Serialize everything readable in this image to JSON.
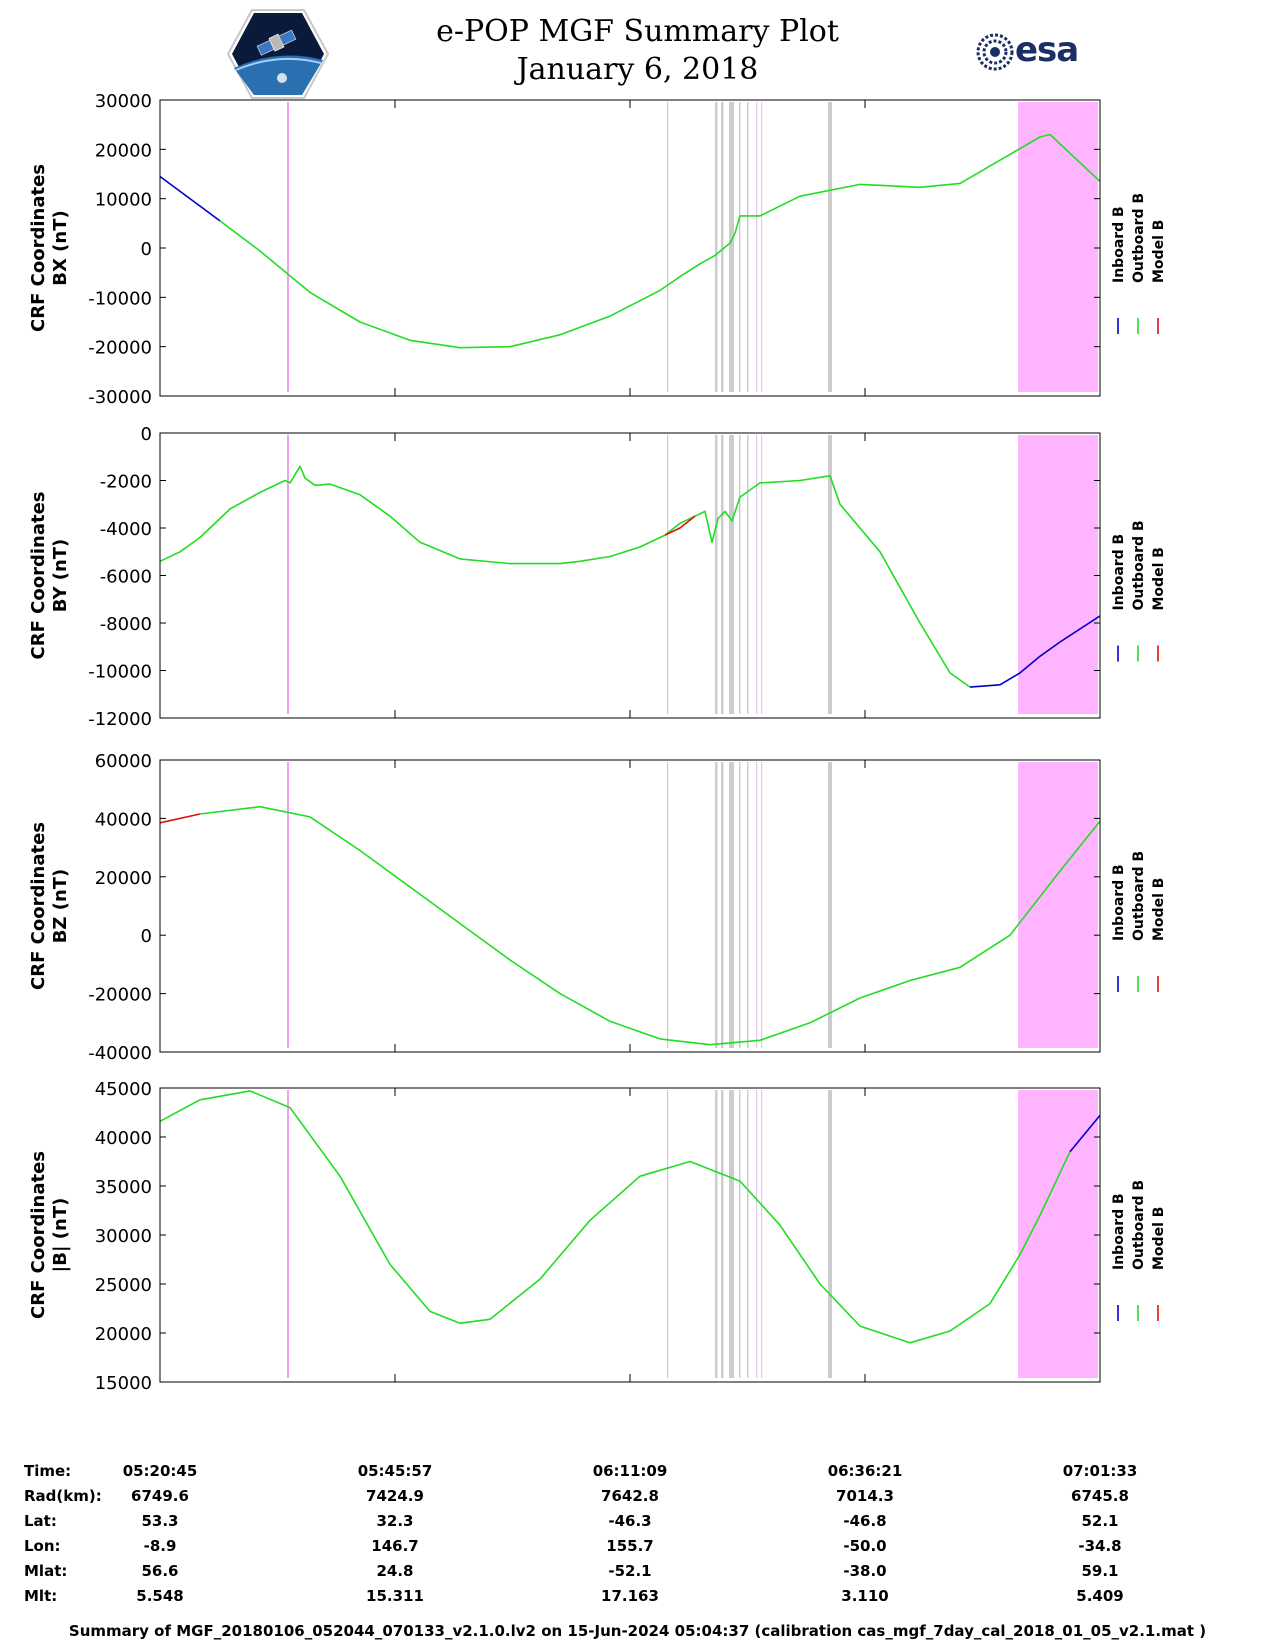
{
  "title": "e-POP MGF Summary Plot",
  "date": "January 6, 2018",
  "logos": {
    "left": "cassiope-mission-icon",
    "right": "esa"
  },
  "esa_text": "esa",
  "legend": [
    "Inboard B",
    "Outboard B",
    "Model B"
  ],
  "colors": {
    "inboard": "#0000cc",
    "outboard": "#22dd22",
    "model": "#dd1111",
    "mask_pink": "#ffb4ff",
    "mask_pink_line": "#f0a0f0",
    "mask_grey": "#cccccc"
  },
  "chart_data": [
    {
      "type": "line",
      "ylabel": [
        "CRF Coordinates",
        "BX (nT)"
      ],
      "ylim": [
        -30000,
        30000
      ],
      "yticks": [
        30000,
        20000,
        10000,
        0,
        -10000,
        -20000,
        -30000
      ],
      "ytick_labels": [
        "30000",
        "20000",
        "10000",
        "0",
        "-10000",
        "-20000",
        "-30000"
      ],
      "series": [
        {
          "name": "Inboard B",
          "x": [
            0,
            60
          ],
          "values": [
            14500,
            5500
          ]
        },
        {
          "name": "Outboard B",
          "x": [
            60,
            100,
            150,
            200,
            250,
            300,
            350,
            400,
            450,
            500,
            520,
            540,
            555,
            570,
            575,
            580,
            600,
            640,
            700,
            760,
            800,
            840,
            880,
            890,
            940
          ],
          "values": [
            5500,
            -600,
            -9000,
            -15000,
            -18700,
            -20200,
            -20000,
            -17600,
            -13800,
            -8600,
            -5800,
            -3200,
            -1500,
            1000,
            3000,
            6500,
            6500,
            10500,
            12900,
            12300,
            13100,
            17800,
            22500,
            23000,
            13500
          ]
        }
      ]
    },
    {
      "type": "line",
      "ylabel": [
        "CRF Coordinates",
        "BY (nT)"
      ],
      "ylim": [
        -12000,
        0
      ],
      "yticks": [
        0,
        -2000,
        -4000,
        -6000,
        -8000,
        -10000,
        -12000
      ],
      "ytick_labels": [
        "0",
        "-2000",
        "-4000",
        "-6000",
        "-8000",
        "-10000",
        "-12000"
      ],
      "series": [
        {
          "name": "Outboard B",
          "x": [
            0,
            20,
            40,
            70,
            100,
            125,
            130,
            140,
            145,
            155,
            170,
            200,
            230,
            260,
            300,
            350,
            400,
            420,
            450,
            480,
            505,
            520,
            545,
            552,
            558,
            565,
            572,
            580,
            590,
            600,
            640,
            670,
            680,
            720,
            760,
            790,
            810
          ],
          "values": [
            -5400,
            -5000,
            -4400,
            -3200,
            -2500,
            -2000,
            -2100,
            -1400,
            -1900,
            -2200,
            -2150,
            -2600,
            -3500,
            -4600,
            -5300,
            -5500,
            -5500,
            -5400,
            -5200,
            -4800,
            -4300,
            -3800,
            -3300,
            -4600,
            -3600,
            -3300,
            -3700,
            -2700,
            -2400,
            -2100,
            -2000,
            -1800,
            -3000,
            -5000,
            -8000,
            -10100,
            -10700
          ]
        },
        {
          "name": "Inboard B",
          "x": [
            810,
            840,
            860,
            880,
            900,
            940
          ],
          "values": [
            -10700,
            -10600,
            -10100,
            -9400,
            -8800,
            -7700
          ]
        },
        {
          "name": "Model B",
          "x": [
            505,
            520,
            535
          ],
          "values": [
            -4300,
            -4000,
            -3500
          ]
        }
      ]
    },
    {
      "type": "line",
      "ylabel": [
        "CRF Coordinates",
        "BZ (nT)"
      ],
      "ylim": [
        -40000,
        60000
      ],
      "yticks": [
        60000,
        40000,
        20000,
        0,
        -20000,
        -40000
      ],
      "ytick_labels": [
        "60000",
        "40000",
        "20000",
        "0",
        "-20000",
        "-40000"
      ],
      "series": [
        {
          "name": "Model B",
          "x": [
            0,
            40
          ],
          "values": [
            38500,
            41500
          ]
        },
        {
          "name": "Outboard B",
          "x": [
            40,
            100,
            150,
            200,
            250,
            300,
            350,
            400,
            450,
            500,
            550,
            600,
            650,
            700,
            750,
            800,
            850,
            900,
            940
          ],
          "values": [
            41500,
            44000,
            40500,
            29000,
            16500,
            4000,
            -8500,
            -20000,
            -29500,
            -35500,
            -37500,
            -36000,
            -30000,
            -21500,
            -15500,
            -11000,
            0,
            22000,
            39000
          ]
        }
      ]
    },
    {
      "type": "line",
      "ylabel": [
        "CRF Coordinates",
        "|B| (nT)"
      ],
      "ylim": [
        15000,
        45000
      ],
      "yticks": [
        45000,
        40000,
        35000,
        30000,
        25000,
        20000,
        15000
      ],
      "ytick_labels": [
        "45000",
        "40000",
        "35000",
        "30000",
        "25000",
        "20000",
        "15000"
      ],
      "series": [
        {
          "name": "Outboard B",
          "x": [
            0,
            40,
            90,
            130,
            180,
            230,
            270,
            300,
            330,
            380,
            430,
            480,
            530,
            580,
            620,
            660,
            700,
            750,
            790,
            830,
            860,
            880,
            910
          ],
          "values": [
            41600,
            43800,
            44700,
            43000,
            36000,
            27000,
            22200,
            21000,
            21400,
            25500,
            31500,
            36000,
            37500,
            35500,
            31000,
            25000,
            20700,
            19000,
            20200,
            23000,
            28000,
            32000,
            38500
          ]
        },
        {
          "name": "Inboard B",
          "x": [
            910,
            940
          ],
          "values": [
            38500,
            42200
          ]
        }
      ]
    }
  ],
  "masks": {
    "pink_block": [
      858,
      940
    ],
    "pink_lines": [
      128
    ],
    "grey_lines": [
      {
        "x": 507,
        "w": 1.2
      },
      {
        "x": 555,
        "w": 2.5
      },
      {
        "x": 561,
        "w": 2.5
      },
      {
        "x": 569,
        "w": 5
      },
      {
        "x": 579,
        "w": 1.5
      },
      {
        "x": 587,
        "w": 1.5
      },
      {
        "x": 668,
        "w": 4
      }
    ],
    "pink_thin_lines": [
      596,
      601
    ]
  },
  "x_axis": {
    "range": [
      0,
      940
    ],
    "ticks": [
      0,
      235,
      470,
      705,
      940
    ]
  },
  "ephemeris": {
    "labels": [
      "Time:",
      "Rad(km):",
      "Lat:",
      "Lon:",
      "Mlat:",
      "Mlt:"
    ],
    "columns": [
      [
        "05:20:45",
        "6749.6",
        "53.3",
        "-8.9",
        "56.6",
        "5.548"
      ],
      [
        "05:45:57",
        "7424.9",
        "32.3",
        "146.7",
        "24.8",
        "15.311"
      ],
      [
        "06:11:09",
        "7642.8",
        "-46.3",
        "155.7",
        "-52.1",
        "17.163"
      ],
      [
        "06:36:21",
        "7014.3",
        "-46.8",
        "-50.0",
        "-38.0",
        "3.110"
      ],
      [
        "07:01:33",
        "6745.8",
        "52.1",
        "-34.8",
        "59.1",
        "5.409"
      ]
    ]
  },
  "footer": "Summary of MGF_20180106_052044_070133_v2.1.0.lv2 on 15-Jun-2024 05:04:37 (calibration cas_mgf_7day_cal_2018_01_05_v2.1.mat )"
}
